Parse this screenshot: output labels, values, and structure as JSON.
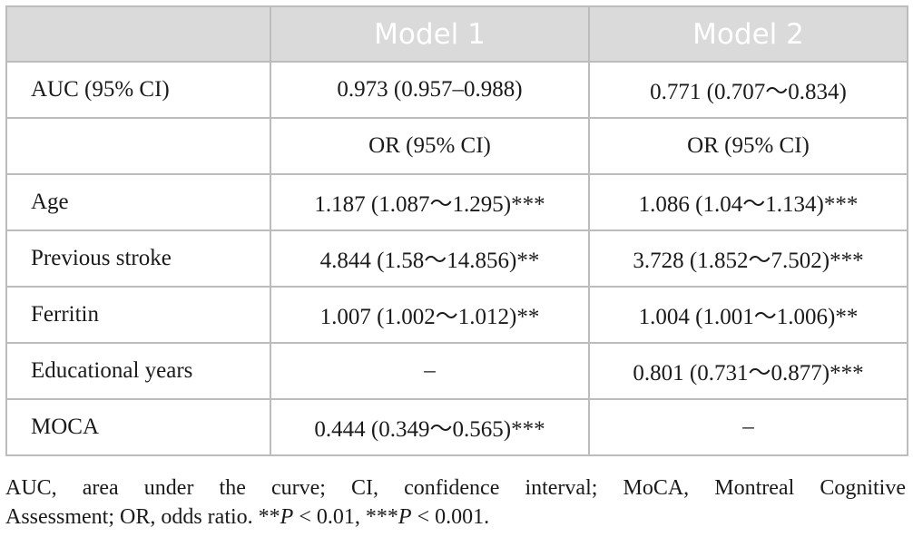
{
  "table": {
    "headers": [
      "",
      "Model 1",
      "Model 2"
    ],
    "rows": [
      {
        "label": "AUC (95% CI)",
        "model1": "0.973 (0.957–0.988)",
        "model2": "0.771 (0.707～0.834)"
      },
      {
        "label": "",
        "model1": "OR (95% CI)",
        "model2": "OR (95% CI)"
      },
      {
        "label": "Age",
        "model1": "1.187 (1.087～1.295)***",
        "model2": "1.086 (1.04～1.134)***"
      },
      {
        "label": "Previous stroke",
        "model1": "4.844 (1.58～14.856)**",
        "model2": "3.728 (1.852～7.502)***"
      },
      {
        "label": "Ferritin",
        "model1": "1.007 (1.002～1.012)**",
        "model2": "1.004 (1.001～1.006)**"
      },
      {
        "label": "Educational years",
        "model1": "–",
        "model2": "0.801 (0.731～0.877)***"
      },
      {
        "label": "MOCA",
        "model1": "0.444 (0.349～0.565)***",
        "model2": "–"
      }
    ]
  },
  "footnote": {
    "line1": "AUC, area under the curve; CI, confidence interval; MoCA, Montreal Cognitive",
    "line2_text": "Assessment; OR, odds ratio. **",
    "p_symbol": "P",
    "p1_rest": " < 0.01, ***",
    "p2_rest": " < 0.001."
  },
  "colors": {
    "header_bg": "#dadada",
    "header_text": "#ffffff",
    "border": "#bcbcbc",
    "text": "#1a1a1a"
  }
}
